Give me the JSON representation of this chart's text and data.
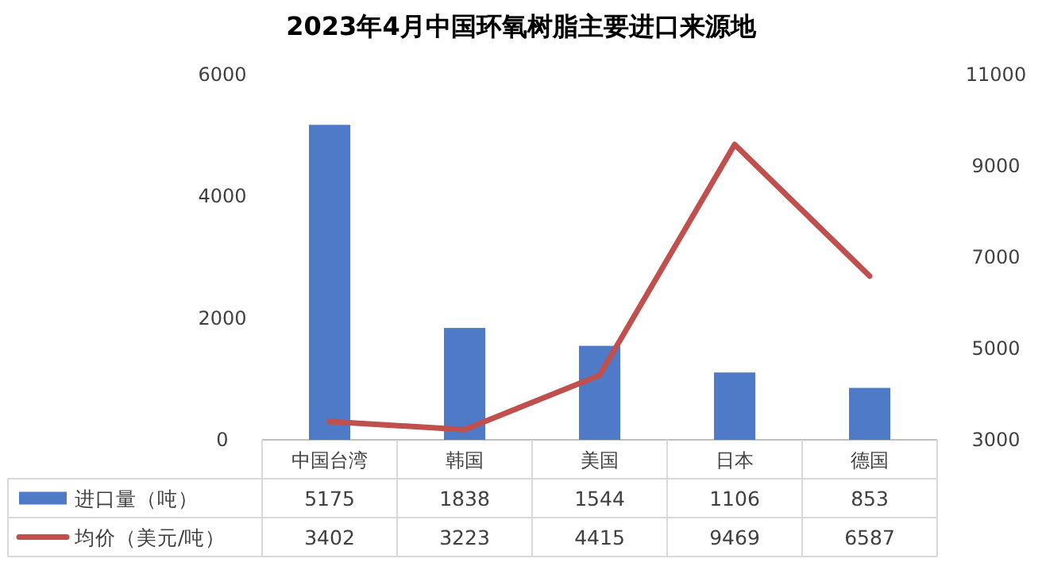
{
  "chart_data": {
    "type": "bar",
    "title": "2023年4月中国环氧树脂主要进口来源地",
    "categories": [
      "中国台湾",
      "韩国",
      "美国",
      "日本",
      "德国"
    ],
    "series": [
      {
        "name": "进口量（吨）",
        "color": "#4f7ac7",
        "values": [
          5175,
          1838,
          1544,
          1106,
          853
        ]
      },
      {
        "name": "均价（美元/吨）",
        "type": "line",
        "axis": "y2",
        "color": "#c0504d",
        "values": [
          3402,
          3223,
          4415,
          9469,
          6587
        ]
      }
    ],
    "ylim": [
      0,
      6000
    ],
    "yticks": [
      0,
      2000,
      4000,
      6000
    ],
    "y2lim": [
      3000,
      11000
    ],
    "y2ticks": [
      3000,
      5000,
      7000,
      9000,
      11000
    ],
    "data_labels": true,
    "legend": "bottom"
  }
}
